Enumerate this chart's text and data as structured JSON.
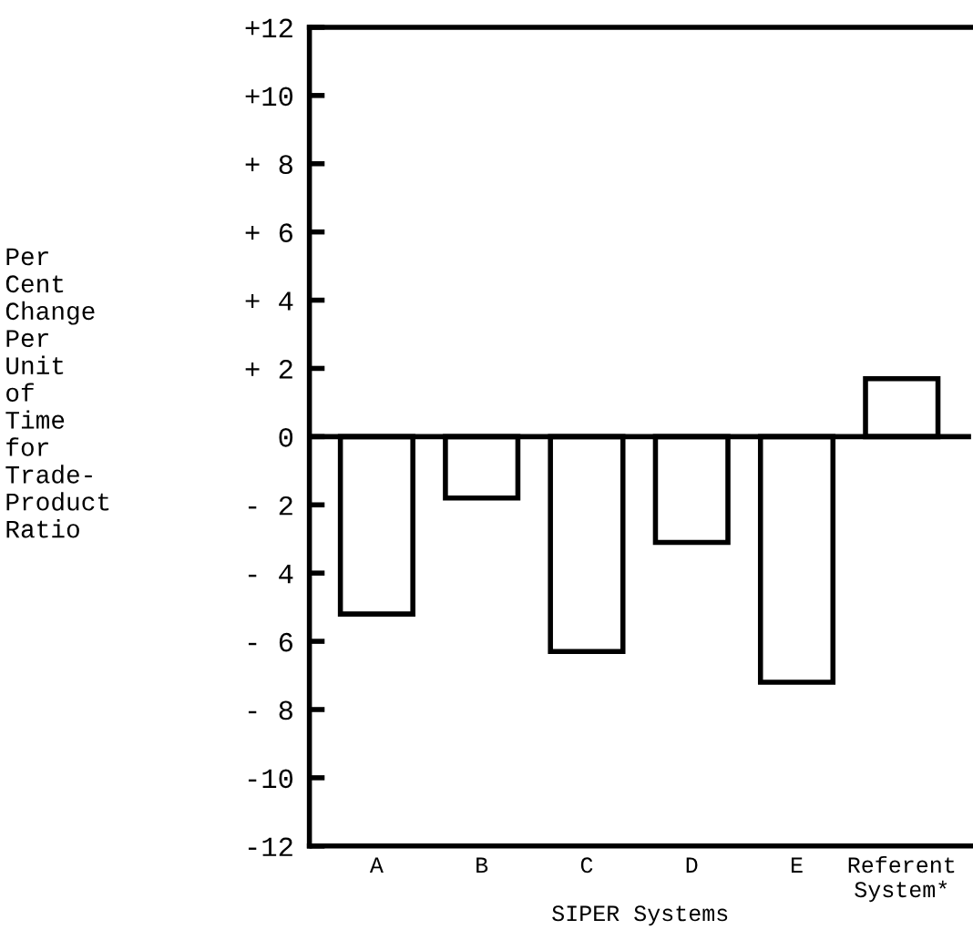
{
  "chart_data": {
    "type": "bar",
    "xlabel": "SIPER Systems",
    "ylabel": "Per\nCent\nChange\nPer\nUnit\nof\nTime\nfor\nTrade-\nProduct\nRatio",
    "categories": [
      "A",
      "B",
      "C",
      "D",
      "E",
      "Referent\nSystem*"
    ],
    "values": [
      -5.2,
      -1.8,
      -6.3,
      -3.1,
      -7.2,
      1.7
    ],
    "color": "#ffffff",
    "ylim": [
      -12,
      12
    ],
    "yticks": [
      {
        "value": 12,
        "label": "+12"
      },
      {
        "value": 10,
        "label": "+10"
      },
      {
        "value": 8,
        "label": "+ 8"
      },
      {
        "value": 6,
        "label": "+ 6"
      },
      {
        "value": 4,
        "label": "+ 4"
      },
      {
        "value": 2,
        "label": "+ 2"
      },
      {
        "value": 0,
        "label": "0"
      },
      {
        "value": -2,
        "label": "- 2"
      },
      {
        "value": -4,
        "label": "- 4"
      },
      {
        "value": -6,
        "label": "- 6"
      },
      {
        "value": -8,
        "label": "- 8"
      },
      {
        "value": -10,
        "label": "-10"
      },
      {
        "value": -12,
        "label": "-12"
      }
    ],
    "legend": false
  }
}
